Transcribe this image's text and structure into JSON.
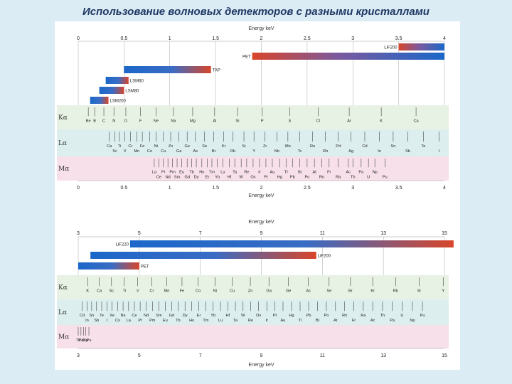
{
  "title": "Использование волновых детекторов с разными кристаллами",
  "axis_title": "Energy keV",
  "colors": {
    "blue": "#1b67c9",
    "red": "#d8452a",
    "ka_band": "#e7f1e4",
    "la_band": "#dcefee",
    "ma_band": "#f7e0ea",
    "background": "#dcecf5"
  },
  "row_labels": {
    "ka": "Kα",
    "la": "Lα",
    "ma": "Mα"
  },
  "panels": [
    {
      "id": "low",
      "ticks_top": [
        "0",
        "0.5",
        "1",
        "1.5",
        "2",
        "2.5",
        "3",
        "3.5",
        "4"
      ],
      "ticks_bottom": [
        "0",
        "0.5",
        "1",
        "1.5",
        "2",
        "2.5",
        "3",
        "3.5",
        "4"
      ],
      "crystals": [
        {
          "name": "LiF200",
          "x0": 3.5,
          "x1": 4
        },
        {
          "name": "PET",
          "x0": 1.9,
          "x1": 4
        },
        {
          "name": "TAP",
          "x0": 0.5,
          "x1": 1.45
        },
        {
          "name": "LSM60",
          "x0": 0.3,
          "x1": 0.55
        },
        {
          "name": "LSM80",
          "x0": 0.23,
          "x1": 0.5
        },
        {
          "name": "LSM200",
          "x0": 0.13,
          "x1": 0.33
        }
      ],
      "ka": [
        {
          "e": 0.11,
          "t": "Be"
        },
        {
          "e": 0.18,
          "t": "B"
        },
        {
          "e": 0.28,
          "t": "C"
        },
        {
          "e": 0.39,
          "t": "N"
        },
        {
          "e": 0.52,
          "t": "O"
        },
        {
          "e": 0.68,
          "t": "F"
        },
        {
          "e": 0.85,
          "t": "Ne"
        },
        {
          "e": 1.04,
          "t": "Na"
        },
        {
          "e": 1.25,
          "t": "Mg"
        },
        {
          "e": 1.49,
          "t": "Al"
        },
        {
          "e": 1.74,
          "t": "Si"
        },
        {
          "e": 2.01,
          "t": "P"
        },
        {
          "e": 2.31,
          "t": "S"
        },
        {
          "e": 2.62,
          "t": "Cl"
        },
        {
          "e": 2.96,
          "t": "Ar"
        },
        {
          "e": 3.31,
          "t": "K"
        },
        {
          "e": 3.69,
          "t": "Ca"
        }
      ],
      "la": [
        {
          "e": 0.34,
          "t": "Ca"
        },
        {
          "e": 0.4,
          "t": "Sc"
        },
        {
          "e": 0.45,
          "t": "Ti"
        },
        {
          "e": 0.51,
          "t": "V"
        },
        {
          "e": 0.57,
          "t": "Cr"
        },
        {
          "e": 0.64,
          "t": "Mn"
        },
        {
          "e": 0.7,
          "t": "Fe"
        },
        {
          "e": 0.78,
          "t": "Co"
        },
        {
          "e": 0.85,
          "t": "Ni"
        },
        {
          "e": 0.93,
          "t": "Cu"
        },
        {
          "e": 1.01,
          "t": "Zn"
        },
        {
          "e": 1.1,
          "t": "Ga"
        },
        {
          "e": 1.19,
          "t": "Ge"
        },
        {
          "e": 1.28,
          "t": "As"
        },
        {
          "e": 1.38,
          "t": "Se"
        },
        {
          "e": 1.48,
          "t": "Br"
        },
        {
          "e": 1.59,
          "t": "Kr"
        },
        {
          "e": 1.69,
          "t": "Rb"
        },
        {
          "e": 1.81,
          "t": "Sr"
        },
        {
          "e": 1.92,
          "t": "Y"
        },
        {
          "e": 2.04,
          "t": "Zr"
        },
        {
          "e": 2.17,
          "t": "Nb"
        },
        {
          "e": 2.29,
          "t": "Mo"
        },
        {
          "e": 2.42,
          "t": "Tc"
        },
        {
          "e": 2.56,
          "t": "Ru"
        },
        {
          "e": 2.7,
          "t": "Rh"
        },
        {
          "e": 2.84,
          "t": "Pd"
        },
        {
          "e": 2.98,
          "t": "Ag"
        },
        {
          "e": 3.13,
          "t": "Cd"
        },
        {
          "e": 3.29,
          "t": "In"
        },
        {
          "e": 3.44,
          "t": "Sn"
        },
        {
          "e": 3.6,
          "t": "Sb"
        },
        {
          "e": 3.77,
          "t": "Te"
        },
        {
          "e": 3.94,
          "t": "I"
        }
      ],
      "ma": [
        {
          "e": 0.83,
          "t": "La"
        },
        {
          "e": 0.88,
          "t": "Ce"
        },
        {
          "e": 0.93,
          "t": "Pr"
        },
        {
          "e": 0.98,
          "t": "Nd"
        },
        {
          "e": 1.03,
          "t": "Pm"
        },
        {
          "e": 1.08,
          "t": "Sm"
        },
        {
          "e": 1.13,
          "t": "Eu"
        },
        {
          "e": 1.19,
          "t": "Gd"
        },
        {
          "e": 1.24,
          "t": "Tb"
        },
        {
          "e": 1.29,
          "t": "Dy"
        },
        {
          "e": 1.35,
          "t": "Ho"
        },
        {
          "e": 1.41,
          "t": "Er"
        },
        {
          "e": 1.46,
          "t": "Tm"
        },
        {
          "e": 1.52,
          "t": "Yb"
        },
        {
          "e": 1.58,
          "t": "Lu"
        },
        {
          "e": 1.65,
          "t": "Hf"
        },
        {
          "e": 1.71,
          "t": "Ta"
        },
        {
          "e": 1.78,
          "t": "W"
        },
        {
          "e": 1.84,
          "t": "Re"
        },
        {
          "e": 1.91,
          "t": "Os"
        },
        {
          "e": 1.98,
          "t": "Ir"
        },
        {
          "e": 2.05,
          "t": "Pt"
        },
        {
          "e": 2.12,
          "t": "Au"
        },
        {
          "e": 2.2,
          "t": "Hg"
        },
        {
          "e": 2.27,
          "t": "Tl"
        },
        {
          "e": 2.34,
          "t": "Pb"
        },
        {
          "e": 2.42,
          "t": "Bi"
        },
        {
          "e": 2.5,
          "t": "Po"
        },
        {
          "e": 2.58,
          "t": "At"
        },
        {
          "e": 2.66,
          "t": "Rn"
        },
        {
          "e": 2.74,
          "t": "Fr"
        },
        {
          "e": 2.84,
          "t": "Ra"
        },
        {
          "e": 2.95,
          "t": "Ac"
        },
        {
          "e": 3.0,
          "t": "Th"
        },
        {
          "e": 3.09,
          "t": "Pa"
        },
        {
          "e": 3.17,
          "t": "U"
        },
        {
          "e": 3.24,
          "t": "Np"
        },
        {
          "e": 3.35,
          "t": "Pu"
        }
      ]
    },
    {
      "id": "high",
      "ticks_top": [
        "3",
        "5",
        "7",
        "9",
        "11",
        "13",
        "15"
      ],
      "ticks_bottom": [
        "3",
        "5",
        "7",
        "9",
        "11",
        "13",
        "15"
      ],
      "crystals": [
        {
          "name": "LiF220",
          "x0": 4.7,
          "x1": 15.3
        },
        {
          "name": "LiF200",
          "x0": 3.4,
          "x1": 10.8
        },
        {
          "name": "PET",
          "x0": 3,
          "x1": 5
        }
      ],
      "ka": [
        {
          "e": 3.31,
          "t": "K"
        },
        {
          "e": 3.69,
          "t": "Ca"
        },
        {
          "e": 4.09,
          "t": "Sc"
        },
        {
          "e": 4.51,
          "t": "Ti"
        },
        {
          "e": 4.95,
          "t": "V"
        },
        {
          "e": 5.41,
          "t": "Cr"
        },
        {
          "e": 5.9,
          "t": "Mn"
        },
        {
          "e": 6.4,
          "t": "Fe"
        },
        {
          "e": 6.93,
          "t": "Co"
        },
        {
          "e": 7.48,
          "t": "Ni"
        },
        {
          "e": 8.05,
          "t": "Cu"
        },
        {
          "e": 8.64,
          "t": "Zn"
        },
        {
          "e": 9.25,
          "t": "Ga"
        },
        {
          "e": 9.89,
          "t": "Ge"
        },
        {
          "e": 10.54,
          "t": "As"
        },
        {
          "e": 11.22,
          "t": "Se"
        },
        {
          "e": 11.92,
          "t": "Br"
        },
        {
          "e": 12.65,
          "t": "Kr"
        },
        {
          "e": 13.4,
          "t": "Rb"
        },
        {
          "e": 14.17,
          "t": "Sr"
        },
        {
          "e": 14.96,
          "t": "Y"
        }
      ],
      "la": [
        {
          "e": 3.13,
          "t": "Cd"
        },
        {
          "e": 3.29,
          "t": "In"
        },
        {
          "e": 3.44,
          "t": "Sn"
        },
        {
          "e": 3.6,
          "t": "Sb"
        },
        {
          "e": 3.77,
          "t": "Te"
        },
        {
          "e": 3.94,
          "t": "I"
        },
        {
          "e": 4.11,
          "t": "Xe"
        },
        {
          "e": 4.29,
          "t": "Cs"
        },
        {
          "e": 4.47,
          "t": "Ba"
        },
        {
          "e": 4.65,
          "t": "La"
        },
        {
          "e": 4.84,
          "t": "Ce"
        },
        {
          "e": 5.03,
          "t": "Pr"
        },
        {
          "e": 5.23,
          "t": "Nd"
        },
        {
          "e": 5.43,
          "t": "Pm"
        },
        {
          "e": 5.64,
          "t": "Sm"
        },
        {
          "e": 5.85,
          "t": "Eu"
        },
        {
          "e": 6.06,
          "t": "Gd"
        },
        {
          "e": 6.27,
          "t": "Tb"
        },
        {
          "e": 6.5,
          "t": "Dy"
        },
        {
          "e": 6.72,
          "t": "Ho"
        },
        {
          "e": 6.95,
          "t": "Er"
        },
        {
          "e": 7.18,
          "t": "Tm"
        },
        {
          "e": 7.42,
          "t": "Yb"
        },
        {
          "e": 7.66,
          "t": "Lu"
        },
        {
          "e": 7.9,
          "t": "Hf"
        },
        {
          "e": 8.15,
          "t": "Ta"
        },
        {
          "e": 8.4,
          "t": "W"
        },
        {
          "e": 8.65,
          "t": "Re"
        },
        {
          "e": 8.91,
          "t": "Os"
        },
        {
          "e": 9.18,
          "t": "Ir"
        },
        {
          "e": 9.44,
          "t": "Pt"
        },
        {
          "e": 9.71,
          "t": "Au"
        },
        {
          "e": 9.99,
          "t": "Hg"
        },
        {
          "e": 10.27,
          "t": "Tl"
        },
        {
          "e": 10.55,
          "t": "Pb"
        },
        {
          "e": 10.84,
          "t": "Bi"
        },
        {
          "e": 11.13,
          "t": "Po"
        },
        {
          "e": 11.43,
          "t": "At"
        },
        {
          "e": 11.73,
          "t": "Rn"
        },
        {
          "e": 12.03,
          "t": "Fr"
        },
        {
          "e": 12.34,
          "t": "Ra"
        },
        {
          "e": 12.65,
          "t": "Ac"
        },
        {
          "e": 12.97,
          "t": "Th"
        },
        {
          "e": 13.29,
          "t": "Pa"
        },
        {
          "e": 13.61,
          "t": "U"
        },
        {
          "e": 13.95,
          "t": "Np"
        },
        {
          "e": 14.28,
          "t": "Pu"
        }
      ],
      "ma": [
        {
          "e": 3.0,
          "t": "Th"
        },
        {
          "e": 3.09,
          "t": "Pa"
        },
        {
          "e": 3.17,
          "t": "U"
        },
        {
          "e": 3.24,
          "t": "Np"
        },
        {
          "e": 3.35,
          "t": "Pu"
        }
      ]
    }
  ]
}
